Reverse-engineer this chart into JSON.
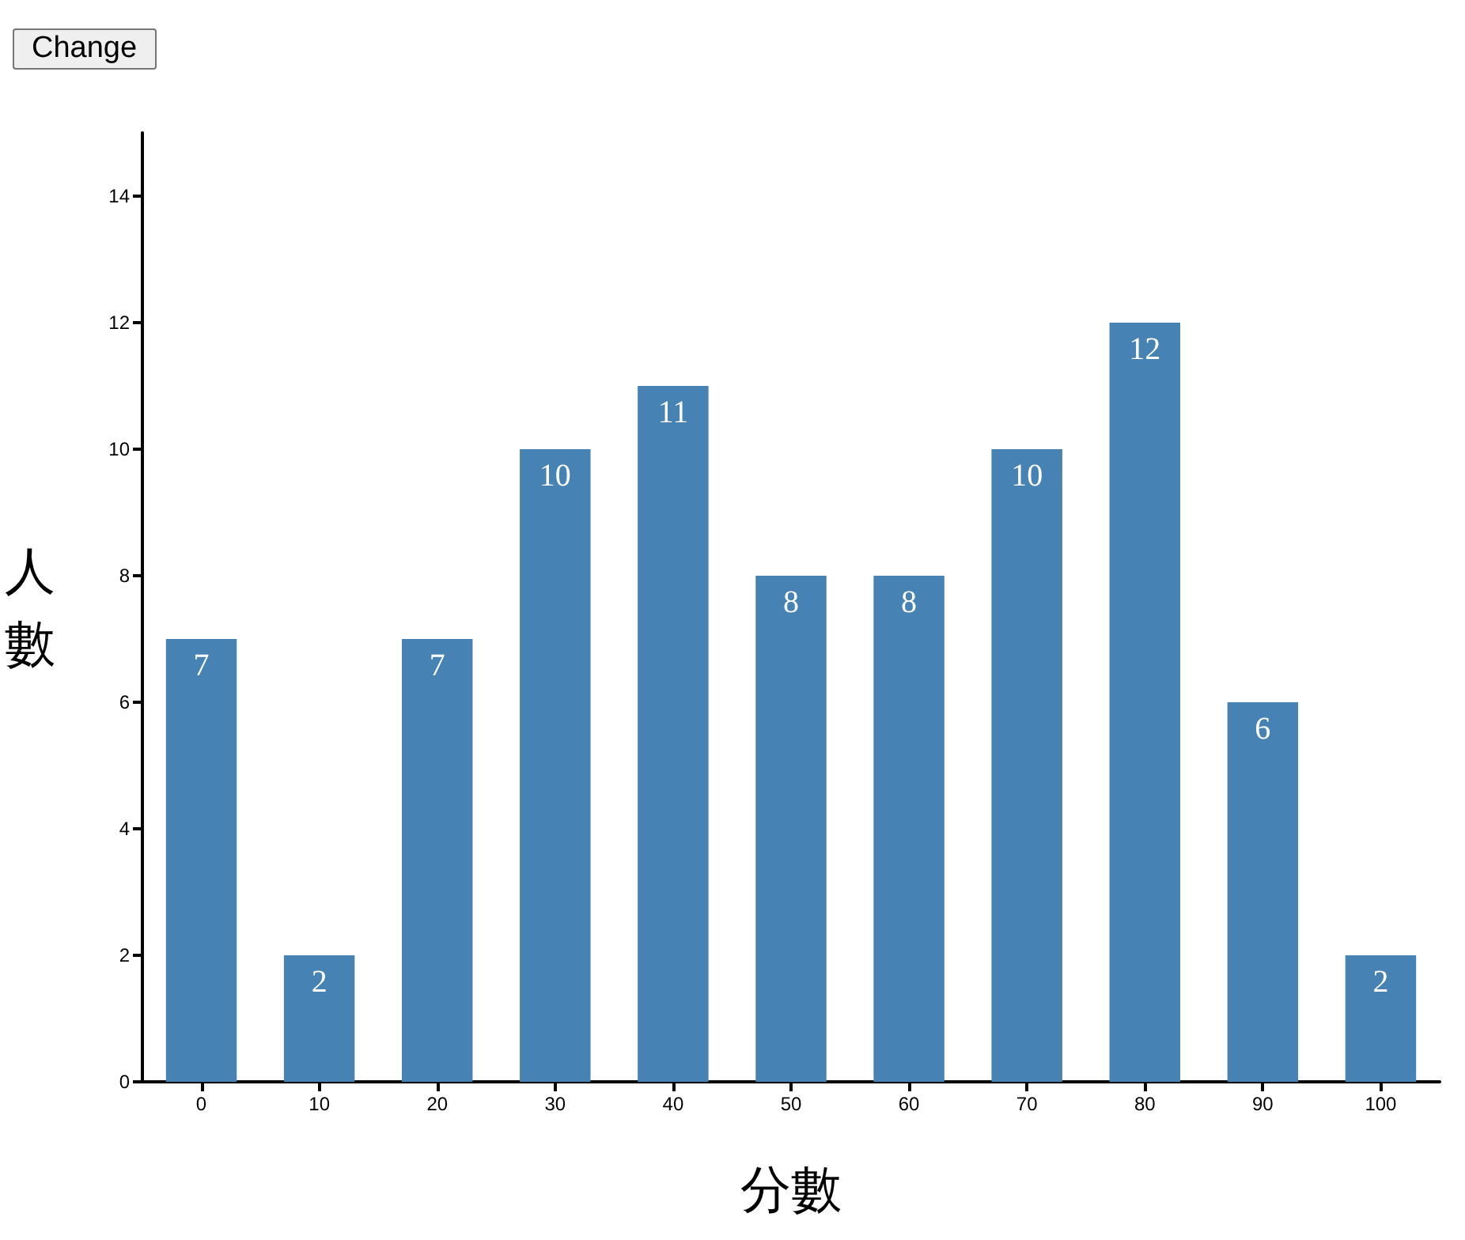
{
  "chart_data": {
    "type": "bar",
    "xlabel": "分數",
    "ylabel": "人數",
    "categories": [
      "0",
      "10",
      "20",
      "30",
      "40",
      "50",
      "60",
      "70",
      "80",
      "90",
      "100"
    ],
    "values": [
      7,
      2,
      7,
      10,
      11,
      8,
      8,
      10,
      12,
      6,
      2
    ],
    "color": "#4682b4",
    "ylim": [
      0,
      15
    ],
    "yticks": [
      0,
      2,
      4,
      6,
      8,
      10,
      12,
      14
    ],
    "grid": false,
    "data_labels": true,
    "annotations": [
      "Change"
    ]
  }
}
